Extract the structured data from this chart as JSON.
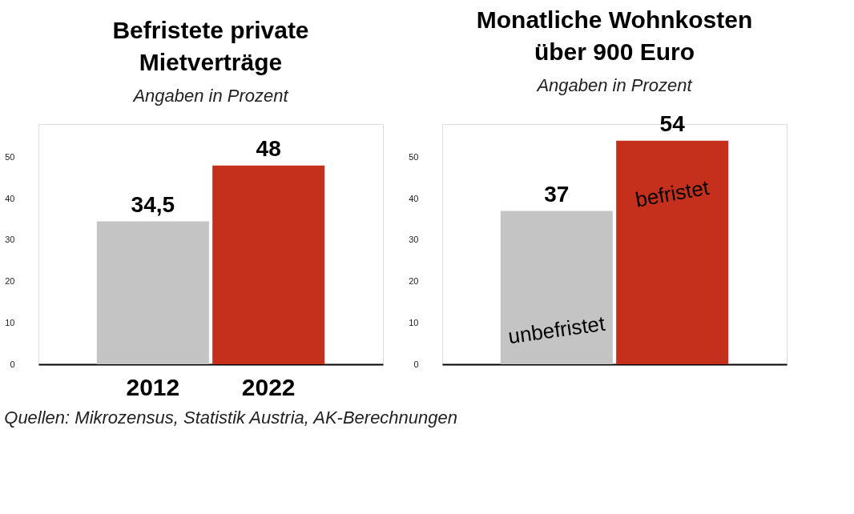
{
  "chart_data": [
    {
      "type": "bar",
      "title": "Befristete private Mietverträge",
      "subtitle": "Angaben in Prozent",
      "categories": [
        "2012",
        "2022"
      ],
      "values": [
        34.5,
        48
      ],
      "colors": [
        "#c4c4c4",
        "#c4301c"
      ],
      "value_labels": [
        "34,5",
        "48"
      ],
      "ylim": [
        0,
        58
      ],
      "yticks": [
        0,
        10,
        20,
        30,
        40,
        50
      ],
      "grid": false,
      "annotations": [
        "Quellen: Mikrozensus, Statistik Austria, AK-Berechnungen"
      ]
    },
    {
      "type": "bar",
      "title": "Monatliche Wohnkosten über 900 Euro",
      "subtitle": "Angaben in Prozent",
      "categories": [
        null,
        null
      ],
      "values": [
        37,
        54
      ],
      "colors": [
        "#c4c4c4",
        "#c4301c"
      ],
      "value_labels": [
        "37",
        "54"
      ],
      "ylim": [
        0,
        58
      ],
      "yticks": [
        0,
        10,
        20,
        30,
        40,
        50
      ],
      "grid": false,
      "tick_labels": "y",
      "annotations": [
        "unbefristet",
        "befristet"
      ]
    }
  ]
}
